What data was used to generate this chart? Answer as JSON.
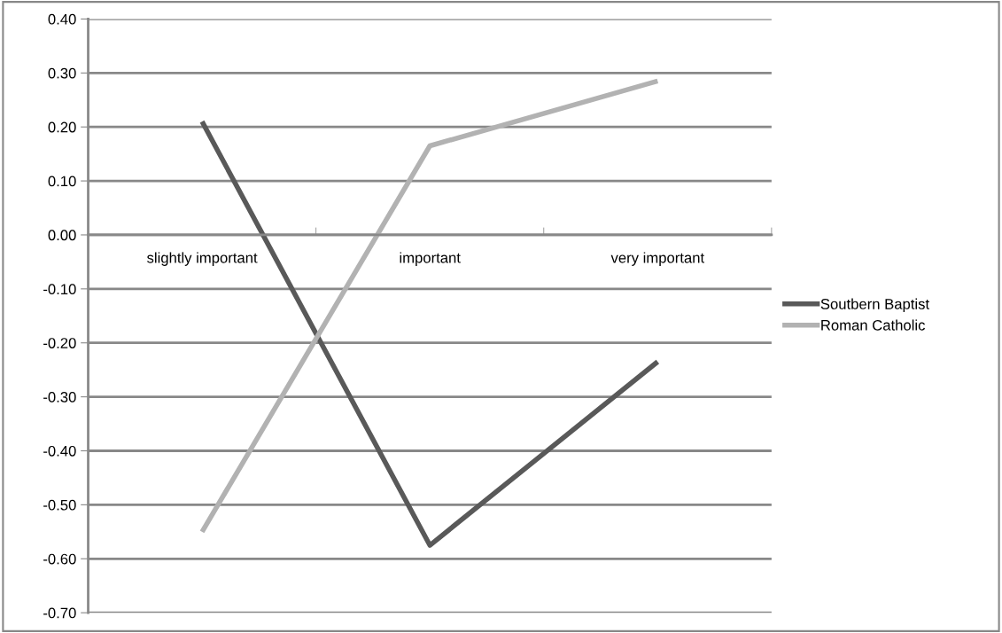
{
  "chart_data": {
    "type": "line",
    "categories": [
      "slightly important",
      "important",
      "very important"
    ],
    "series": [
      {
        "name": "Soutbern Baptist",
        "color": "#595959",
        "values": [
          0.21,
          -0.575,
          -0.235
        ]
      },
      {
        "name": "Roman Catholic",
        "color": "#b2b2b2",
        "values": [
          -0.55,
          0.165,
          0.285
        ]
      }
    ],
    "ylim": [
      -0.7,
      0.4
    ],
    "yticks": [
      {
        "value": -0.7,
        "label": "-0.70"
      },
      {
        "value": -0.6,
        "label": "-0.60"
      },
      {
        "value": -0.5,
        "label": "-0.50"
      },
      {
        "value": -0.4,
        "label": "-0.40"
      },
      {
        "value": -0.3,
        "label": "-0.30"
      },
      {
        "value": -0.2,
        "label": "-0.20"
      },
      {
        "value": -0.1,
        "label": "-0.10"
      },
      {
        "value": 0,
        "label": "0.00"
      },
      {
        "value": 0.1,
        "label": "0.10"
      },
      {
        "value": 0.2,
        "label": "0.20"
      },
      {
        "value": 0.3,
        "label": "0.30"
      },
      {
        "value": 0.4,
        "label": "0.40"
      }
    ],
    "grid": "y",
    "legend": "right",
    "marker": "none",
    "line_style": "solid"
  }
}
